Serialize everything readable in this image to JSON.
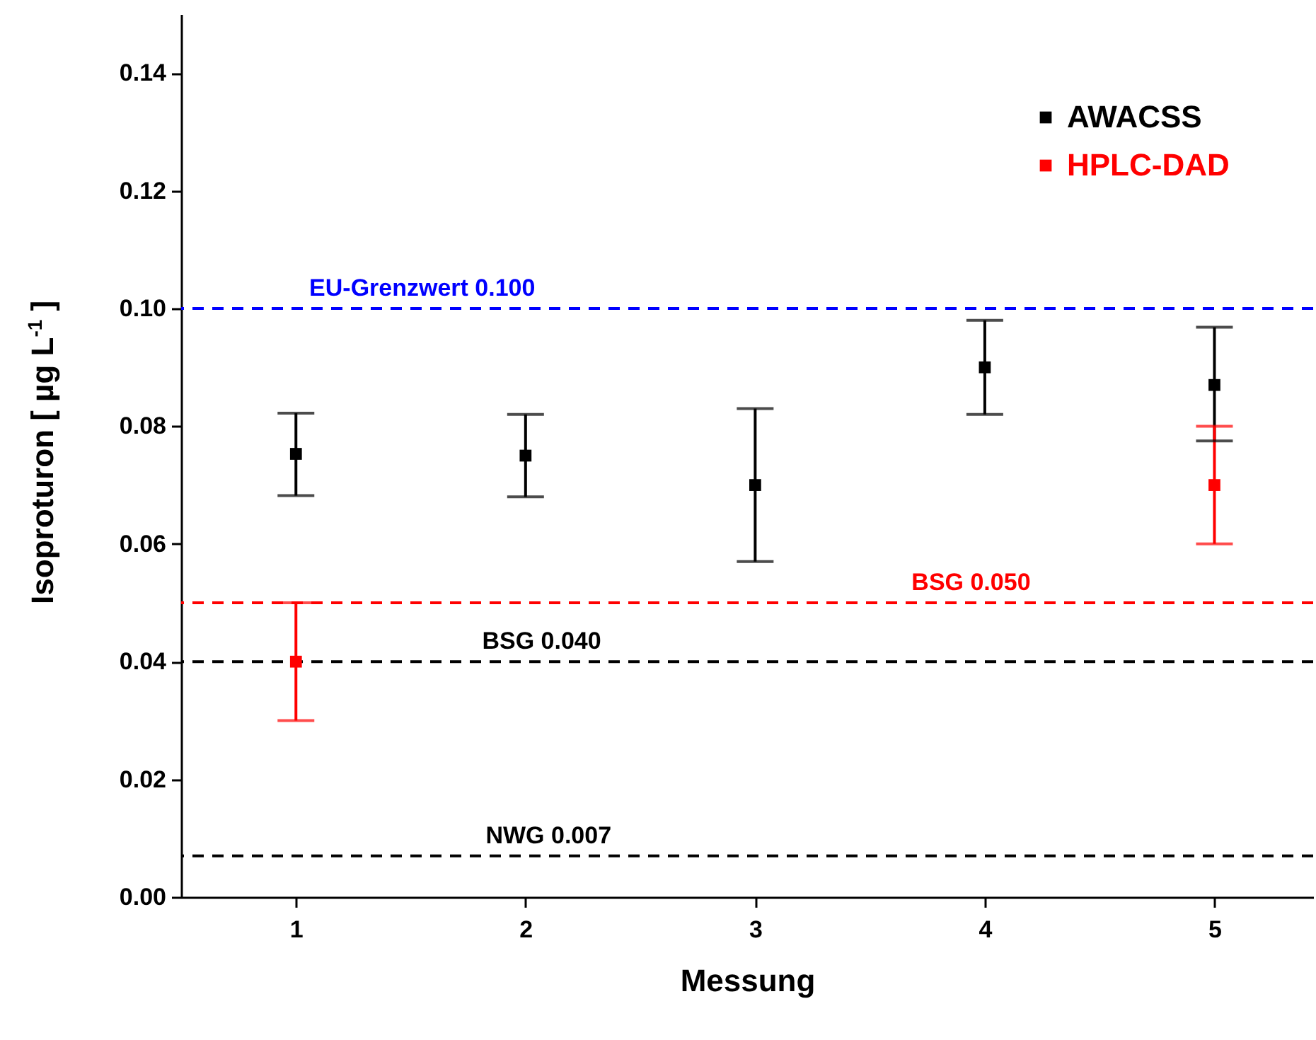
{
  "chart_data": {
    "type": "scatter",
    "xlabel": "Messung",
    "ylabel": "Isoproturon [ µg L$^{-1}$ ]",
    "xlim": [
      0.5,
      5.43
    ],
    "xticks": [
      1,
      2,
      3,
      4,
      5
    ],
    "ylim": [
      0,
      0.15
    ],
    "yticks": [
      {
        "value": 0,
        "label": "0.00"
      },
      {
        "value": 0.02,
        "label": "0.02"
      },
      {
        "value": 0.04,
        "label": "0.04"
      },
      {
        "value": 0.06,
        "label": "0.06"
      },
      {
        "value": 0.08,
        "label": "0.08"
      },
      {
        "value": 0.1,
        "label": "0.10"
      },
      {
        "value": 0.12,
        "label": "0.12"
      },
      {
        "value": 0.14,
        "label": "0.14"
      }
    ],
    "series": [
      {
        "name": "AWACSS",
        "color": "#000000",
        "x": [
          1,
          2,
          3,
          4,
          5
        ],
        "values": [
          0.0753,
          0.075,
          0.07,
          0.09,
          0.087
        ],
        "errors": [
          [
            0.0682,
            0.0822
          ],
          [
            0.068,
            0.082
          ],
          [
            0.057,
            0.083
          ],
          [
            0.082,
            0.098
          ],
          [
            0.0775,
            0.0968
          ]
        ]
      },
      {
        "name": "HPLC-DAD",
        "color": "#ff0000",
        "x": [
          1,
          5
        ],
        "values": [
          0.04,
          0.07
        ],
        "errors": [
          [
            0.03,
            0.05
          ],
          [
            0.06,
            0.08
          ]
        ]
      }
    ],
    "ref_lines": [
      {
        "axis": "y",
        "value": 0.1,
        "label": "EU-Grenzwert 0.100",
        "color": "#0000ff",
        "line_style": "dashed"
      },
      {
        "axis": "y",
        "value": 0.05,
        "label": "BSG 0.050",
        "color": "#ff0000",
        "line_style": "dashed"
      },
      {
        "axis": "y",
        "value": 0.04,
        "label": "BSG 0.040",
        "color": "#000000",
        "line_style": "dashed"
      },
      {
        "axis": "y",
        "value": 0.007,
        "label": "NWG 0.007",
        "color": "#000000",
        "line_style": "dashed"
      }
    ],
    "marker": "square",
    "grid": false,
    "legend": "top right"
  }
}
